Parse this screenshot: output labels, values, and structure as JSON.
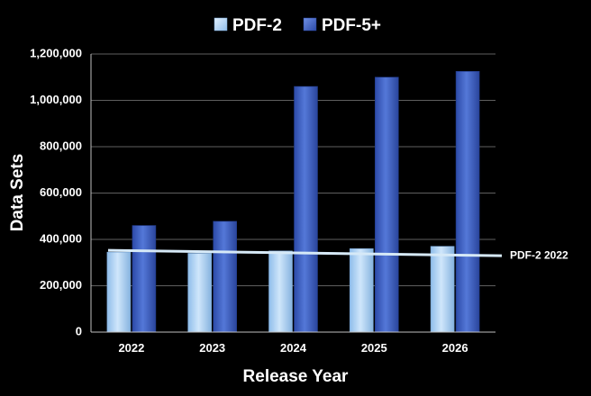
{
  "chart_data": {
    "type": "bar",
    "title": "",
    "xlabel": "Release Year",
    "ylabel": "Data Sets",
    "categories": [
      "2022",
      "2023",
      "2024",
      "2025",
      "2026"
    ],
    "series": [
      {
        "name": "PDF-2",
        "color": "#a8cff5",
        "values": [
          345000,
          340000,
          350000,
          360000,
          370000
        ]
      },
      {
        "name": "PDF-5+",
        "color": "#3d5fc4",
        "values": [
          460000,
          478000,
          1060000,
          1100000,
          1125000
        ]
      }
    ],
    "ylim": [
      0,
      1200000
    ],
    "yticks": [
      "0",
      "200,000",
      "400,000",
      "600,000",
      "800,000",
      "1,000,000",
      "1,200,000"
    ],
    "yticks_values": [
      0,
      200000,
      400000,
      600000,
      800000,
      1000000,
      1200000
    ],
    "grid": true,
    "legend_position": "top",
    "annotation": {
      "label": "PDF-2 2022",
      "value": 345000,
      "color": "#d6e9f7"
    }
  }
}
